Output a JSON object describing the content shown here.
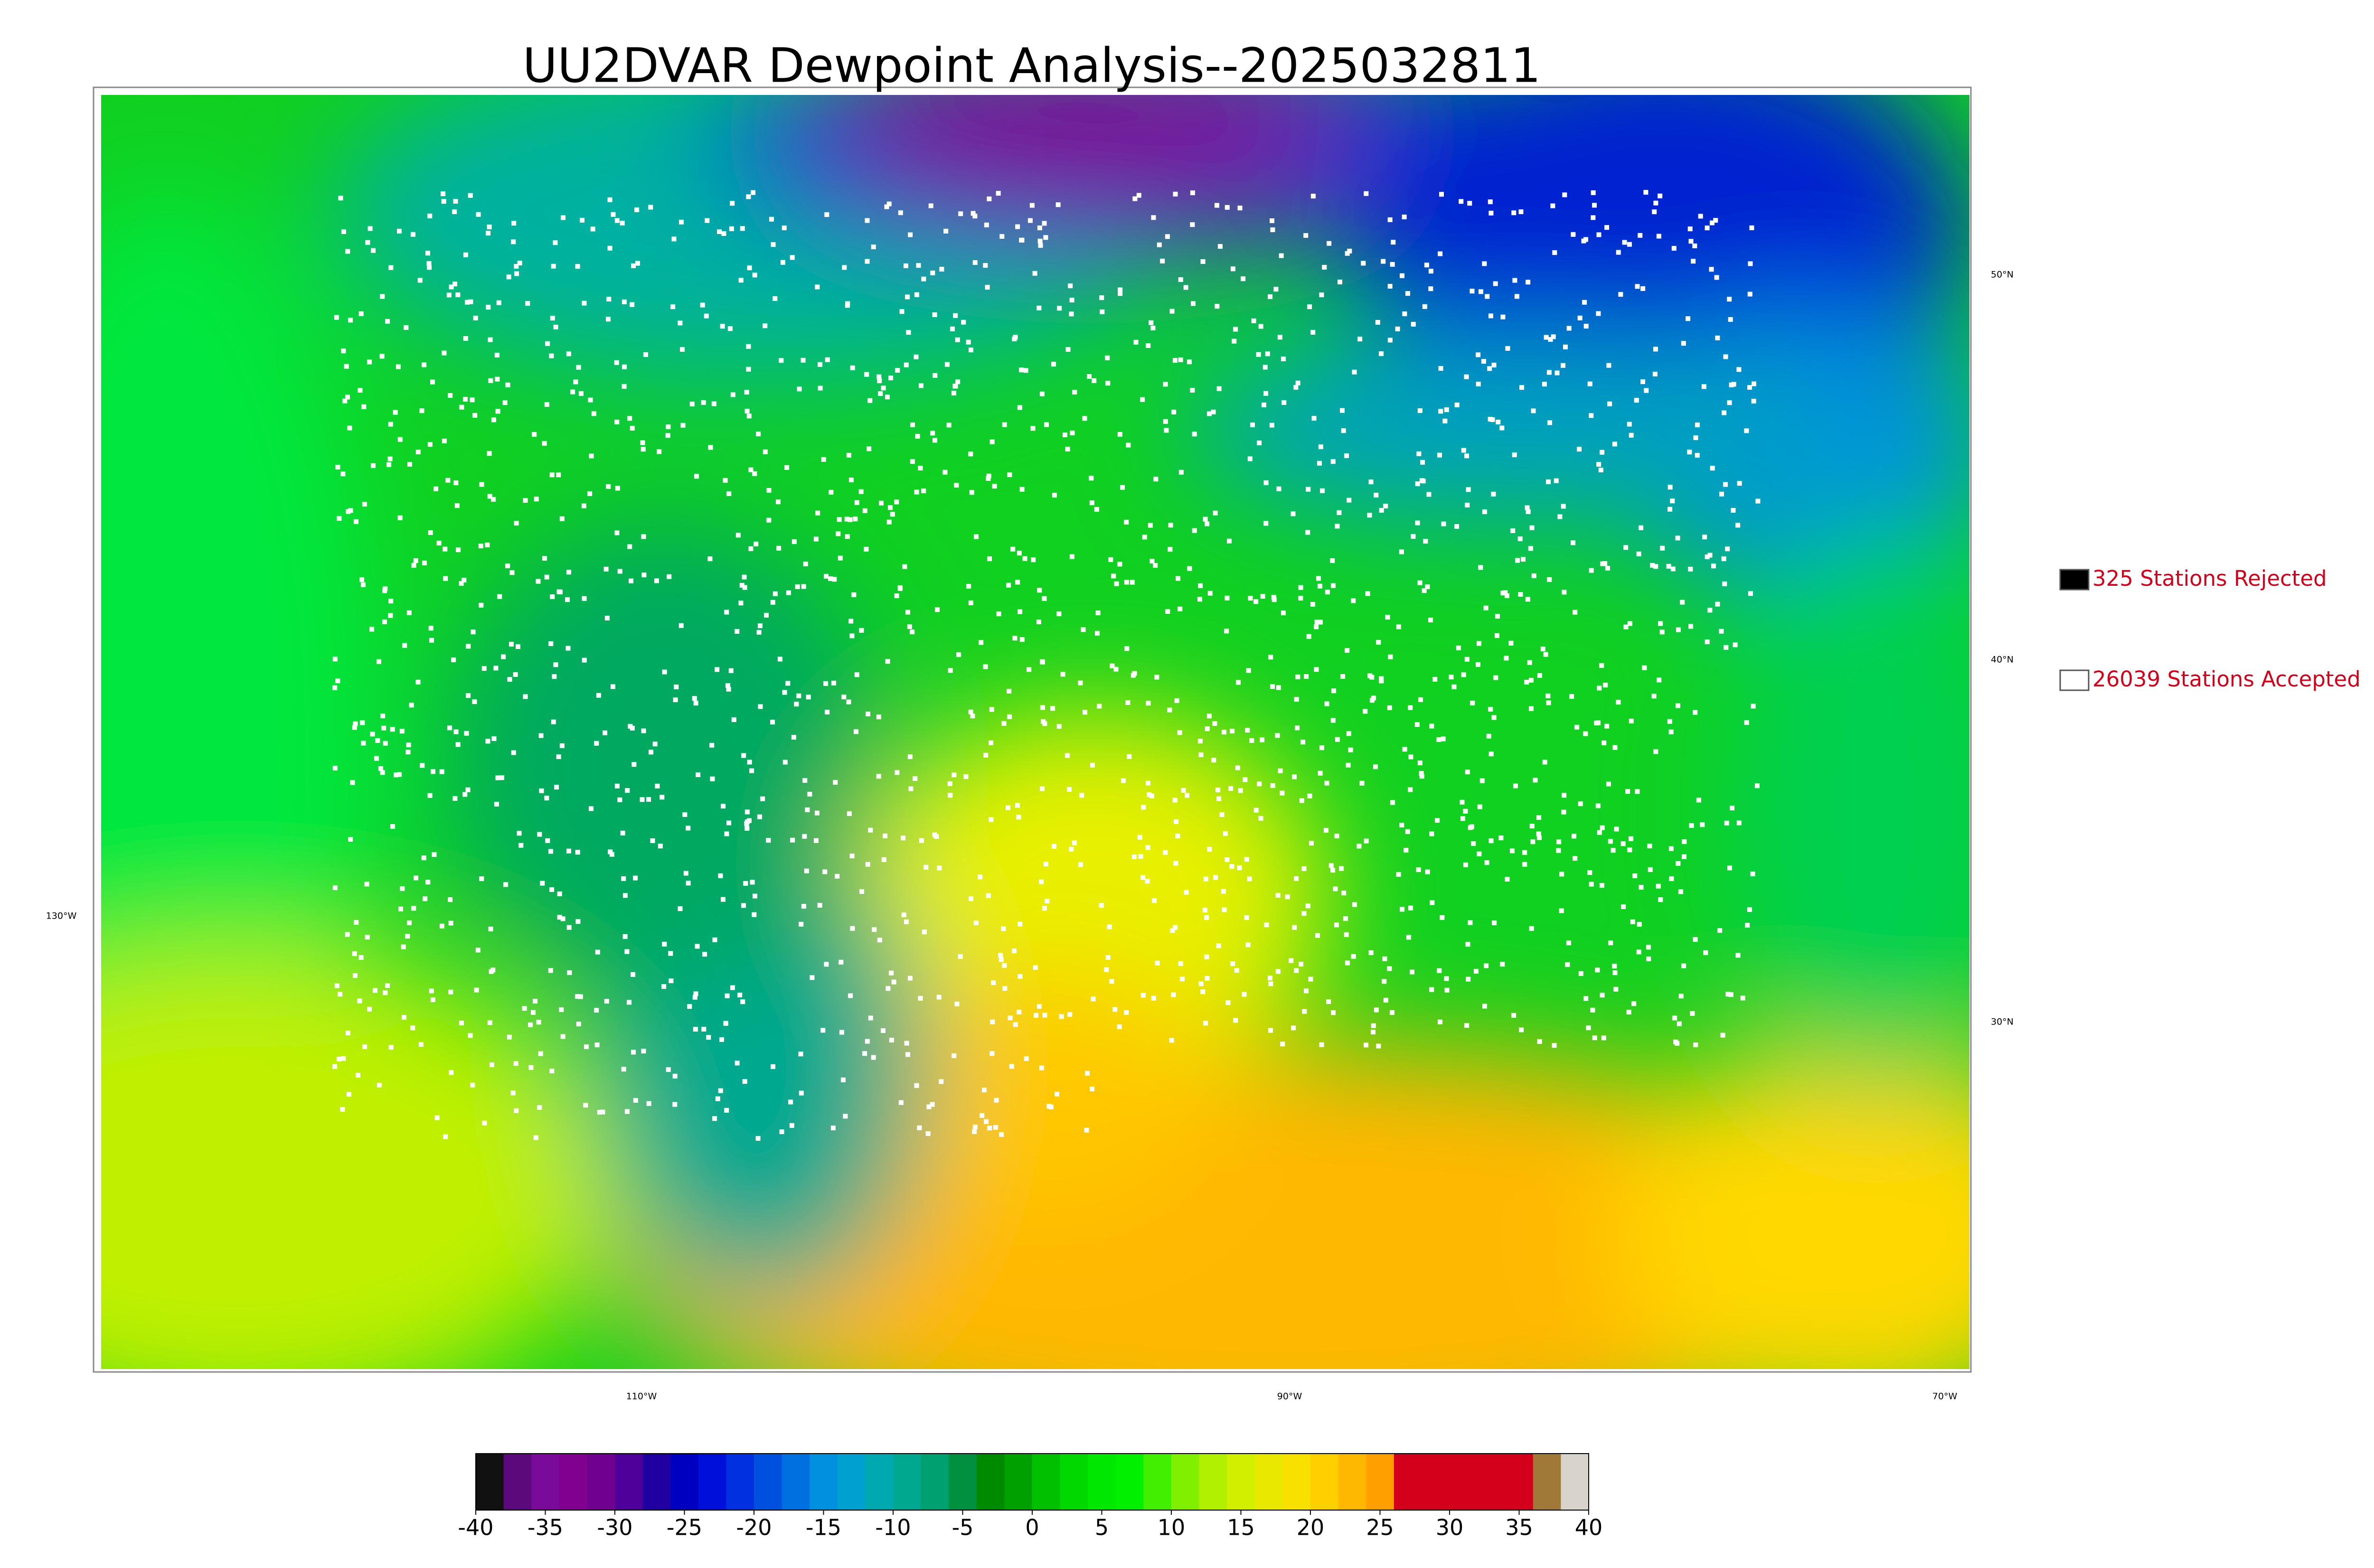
{
  "title": "UU2DVAR Dewpoint Analysis--2025032811",
  "legend": [
    {
      "label": "325 Stations Rejected",
      "color": "#000000"
    },
    {
      "label": "26039 Stations Accepted",
      "color": "#ffffff"
    }
  ],
  "map_labels": {
    "latitudes": [
      "50°N",
      "40°N",
      "30°N"
    ],
    "longitudes": [
      "130°W",
      "110°W",
      "90°W",
      "70°W"
    ]
  },
  "colorbar": {
    "range": [
      -40,
      40
    ],
    "ticks": [
      -40,
      -35,
      -30,
      -25,
      -20,
      -15,
      -10,
      -5,
      0,
      5,
      10,
      15,
      20,
      25,
      30,
      35,
      40
    ],
    "colors": [
      "#111111",
      "#5a0a7a",
      "#7a0a9a",
      "#800090",
      "#700090",
      "#50009a",
      "#2000a0",
      "#0000c0",
      "#0010d8",
      "#0030e0",
      "#0050e0",
      "#0070e0",
      "#0090e0",
      "#00a0d0",
      "#00a8b0",
      "#00a890",
      "#00a070",
      "#009040",
      "#008a00",
      "#00a000",
      "#00c000",
      "#00d800",
      "#00e800",
      "#00f000",
      "#40f000",
      "#80f000",
      "#b0f000",
      "#d0f000",
      "#e8e800",
      "#f8e000",
      "#ffd000",
      "#ffb800",
      "#ffa000",
      "#d2001a",
      "#d2001a",
      "#d2001a",
      "#d2001a",
      "#d2001a",
      "#a07838",
      "#d8d4cc"
    ]
  }
}
